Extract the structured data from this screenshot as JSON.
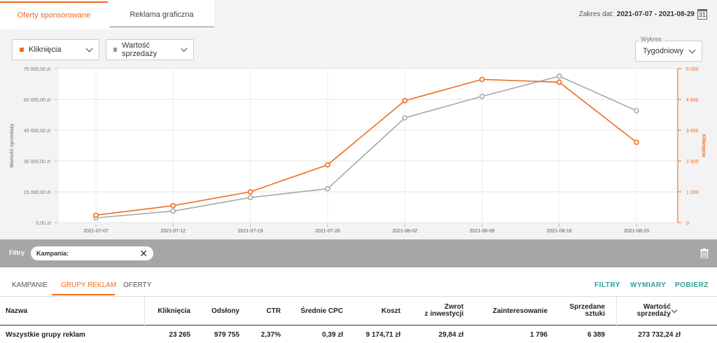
{
  "top_tabs": {
    "sponsored": "Oferty sponsorowane",
    "graphic": "Reklama graficzna"
  },
  "date_range": {
    "label": "Zakres dat:",
    "value": "2021-07-07 - 2021-08-29",
    "calendar_day": "31"
  },
  "dropdowns": {
    "metric1": "Kliknięcia",
    "metric2": "Wartość sprzedaży",
    "chart_label": "Wykres",
    "chart_value": "Tygodniowy"
  },
  "colors": {
    "orange": "#f06a1d",
    "gray": "#a8a8a8",
    "teal": "#2ba098"
  },
  "chart_data": {
    "type": "line",
    "x": [
      "2021-07-07",
      "2021-07-12",
      "2021-07-19",
      "2021-07-26",
      "2021-08-02",
      "2021-08-09",
      "2021-08-16",
      "2021-08-23"
    ],
    "left_axis": {
      "label": "Wartość sprzedaży",
      "ticks": [
        "0,00 zł",
        "15 000,00 zł",
        "30 000,00 zł",
        "45 000,00 zł",
        "60 000,00 zł",
        "75 000,00 zł"
      ],
      "min": 0,
      "max": 75000
    },
    "right_axis": {
      "label": "Kliknięcia",
      "ticks": [
        "0",
        "1 200",
        "2 400",
        "3 600",
        "4 800",
        "6 000"
      ],
      "min": 0,
      "max": 6000
    },
    "series": [
      {
        "name": "Kliknięcia",
        "axis": "right",
        "color": "#f06a1d",
        "values": [
          290,
          660,
          1200,
          2250,
          4750,
          5580,
          5470,
          3130
        ]
      },
      {
        "name": "Wartość sprzedaży",
        "axis": "left",
        "color": "#a8a8a8",
        "values": [
          2300,
          5600,
          12200,
          16500,
          51000,
          61500,
          71300,
          54500
        ]
      }
    ]
  },
  "filter_bar": {
    "label": "Filtry",
    "chip": "Kampania:"
  },
  "lower_tabs": [
    "KAMPANIE",
    "GRUPY REKLAM",
    "OFERTY"
  ],
  "actions": [
    "FILTRY",
    "WYMIARY",
    "POBIERZ"
  ],
  "table": {
    "headers": {
      "name": "Nazwa",
      "clicks": "Kliknięcia",
      "views": "Odsłony",
      "ctr": "CTR",
      "cpc": "Średnie CPC",
      "cost": "Koszt",
      "roi_1": "Zwrot",
      "roi_2": "z inwestycji",
      "interest": "Zainteresowanie",
      "sold_1": "Sprzedane",
      "sold_2": "sztuki",
      "value_1": "Wartość",
      "value_2": "sprzedaży"
    },
    "summary_row": {
      "name": "Wszystkie grupy reklam",
      "clicks": "23 265",
      "views": "979 755",
      "ctr": "2,37%",
      "cpc": "0,39 zł",
      "cost": "9 174,71 zł",
      "roi": "29,84 zł",
      "interest": "1 796",
      "sold": "6 389",
      "value": "273 732,24 zł"
    }
  }
}
